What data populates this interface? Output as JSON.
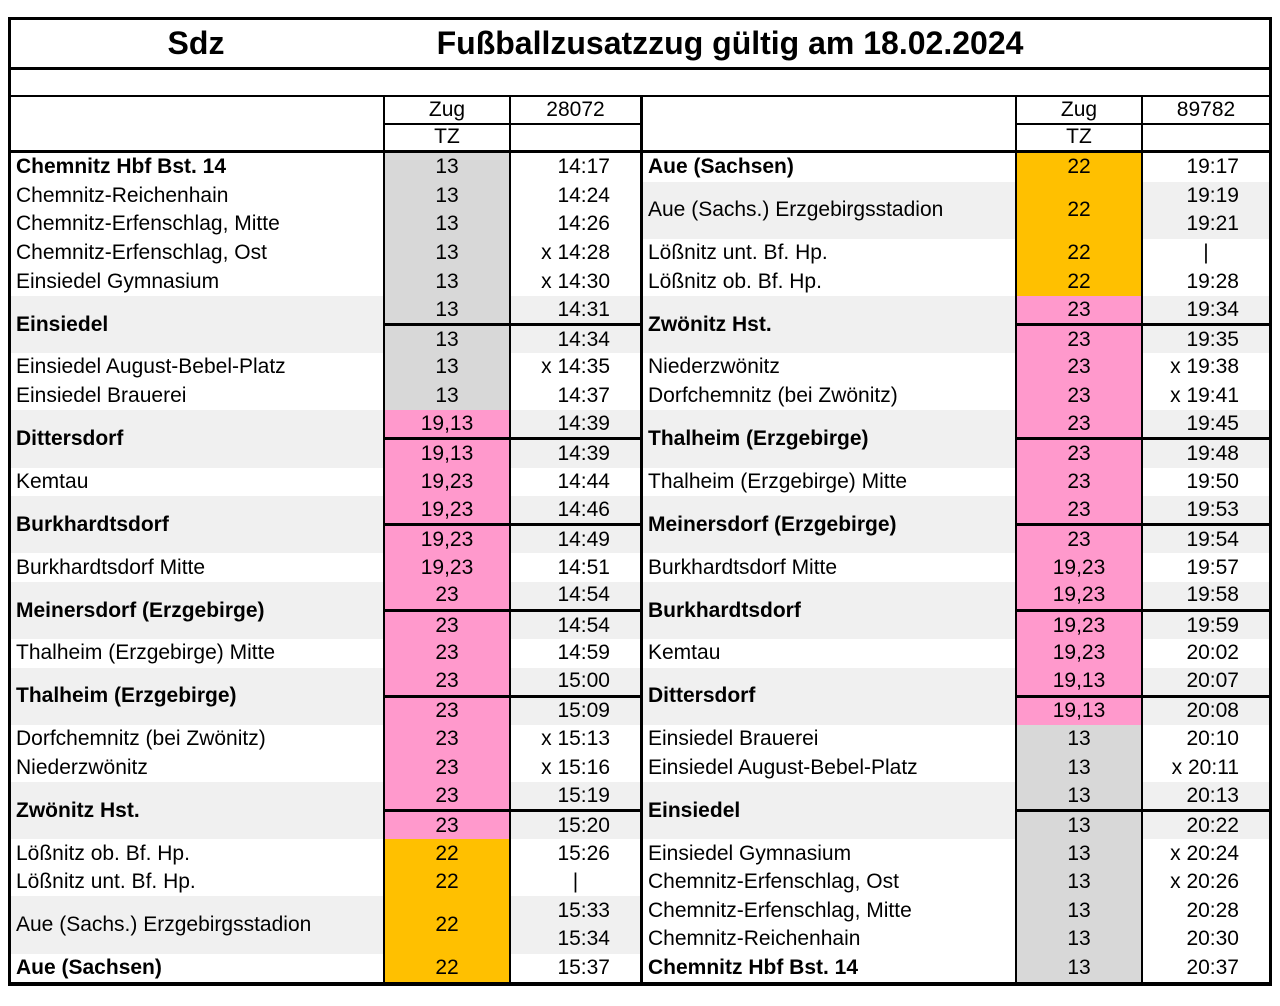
{
  "title": {
    "left": "Sdz",
    "main": "Fußballzusatzzug gültig am 18.02.2024"
  },
  "header_labels": {
    "zug": "Zug",
    "tz": "TZ"
  },
  "colors": {
    "gray": "#D8D8D8",
    "pink": "#FF99CC",
    "orange": "#FFC000",
    "band": "#F0F0F0"
  },
  "tables": [
    {
      "train_number": "28072",
      "groups": [
        {
          "station": "Chemnitz Hbf Bst. 14",
          "bold": true,
          "type": "single",
          "color": "gray",
          "rows": [
            {
              "tz": "13",
              "time": "14:17"
            }
          ]
        },
        {
          "station": "Chemnitz-Reichenhain",
          "bold": false,
          "type": "single",
          "color": "gray",
          "rows": [
            {
              "tz": "13",
              "time": "14:24"
            }
          ]
        },
        {
          "station": "Chemnitz-Erfenschlag, Mitte",
          "bold": false,
          "type": "single",
          "color": "gray",
          "rows": [
            {
              "tz": "13",
              "time": "14:26"
            }
          ]
        },
        {
          "station": "Chemnitz-Erfenschlag, Ost",
          "bold": false,
          "type": "single",
          "color": "gray",
          "rows": [
            {
              "tz": "13",
              "time": "x 14:28"
            }
          ]
        },
        {
          "station": "Einsiedel Gymnasium",
          "bold": false,
          "type": "single",
          "color": "gray",
          "rows": [
            {
              "tz": "13",
              "time": "x 14:30"
            }
          ]
        },
        {
          "station": "Einsiedel",
          "bold": true,
          "type": "double",
          "color": "gray",
          "rows": [
            {
              "tz": "13",
              "time": "14:31"
            },
            {
              "tz": "13",
              "time": "14:34"
            }
          ]
        },
        {
          "station": "Einsiedel August-Bebel-Platz",
          "bold": false,
          "type": "single",
          "color": "gray",
          "rows": [
            {
              "tz": "13",
              "time": "x 14:35"
            }
          ]
        },
        {
          "station": "Einsiedel Brauerei",
          "bold": false,
          "type": "single",
          "color": "gray",
          "rows": [
            {
              "tz": "13",
              "time": "14:37"
            }
          ]
        },
        {
          "station": "Dittersdorf",
          "bold": true,
          "type": "double",
          "color": "pink",
          "rows": [
            {
              "tz": "19,13",
              "time": "14:39"
            },
            {
              "tz": "19,13",
              "time": "14:39"
            }
          ]
        },
        {
          "station": "Kemtau",
          "bold": false,
          "type": "single",
          "color": "pink",
          "rows": [
            {
              "tz": "19,23",
              "time": "14:44"
            }
          ]
        },
        {
          "station": "Burkhardtsdorf",
          "bold": true,
          "type": "double",
          "color": "pink",
          "rows": [
            {
              "tz": "19,23",
              "time": "14:46"
            },
            {
              "tz": "19,23",
              "time": "14:49"
            }
          ]
        },
        {
          "station": "Burkhardtsdorf Mitte",
          "bold": false,
          "type": "single",
          "color": "pink",
          "rows": [
            {
              "tz": "19,23",
              "time": "14:51"
            }
          ]
        },
        {
          "station": "Meinersdorf (Erzgebirge)",
          "bold": true,
          "type": "double",
          "color": "pink",
          "rows": [
            {
              "tz": "23",
              "time": "14:54"
            },
            {
              "tz": "23",
              "time": "14:54"
            }
          ]
        },
        {
          "station": "Thalheim (Erzgebirge) Mitte",
          "bold": false,
          "type": "single",
          "color": "pink",
          "rows": [
            {
              "tz": "23",
              "time": "14:59"
            }
          ]
        },
        {
          "station": "Thalheim (Erzgebirge)",
          "bold": true,
          "type": "double",
          "color": "pink",
          "rows": [
            {
              "tz": "23",
              "time": "15:00"
            },
            {
              "tz": "23",
              "time": "15:09"
            }
          ]
        },
        {
          "station": "Dorfchemnitz (bei Zwönitz)",
          "bold": false,
          "type": "single",
          "color": "pink",
          "rows": [
            {
              "tz": "23",
              "time": "x 15:13"
            }
          ]
        },
        {
          "station": "Niederzwönitz",
          "bold": false,
          "type": "single",
          "color": "pink",
          "rows": [
            {
              "tz": "23",
              "time": "x 15:16"
            }
          ]
        },
        {
          "station": "Zwönitz Hst.",
          "bold": true,
          "type": "double",
          "color": "pink",
          "rows": [
            {
              "tz": "23",
              "time": "15:19"
            },
            {
              "tz": "23",
              "time": "15:20"
            }
          ]
        },
        {
          "station": "Lößnitz ob. Bf. Hp.",
          "bold": false,
          "type": "single",
          "color": "orange",
          "rows": [
            {
              "tz": "22",
              "time": "15:26"
            }
          ]
        },
        {
          "station": "Lößnitz unt. Bf. Hp.",
          "bold": false,
          "type": "single",
          "color": "orange",
          "rows": [
            {
              "tz": "22",
              "time": "|"
            }
          ]
        },
        {
          "station": "Aue (Sachs.) Erzgebirgsstadion",
          "bold": false,
          "type": "span",
          "color": "orange",
          "tz": "22",
          "times": [
            "15:33",
            "15:34"
          ]
        },
        {
          "station": "Aue (Sachsen)",
          "bold": true,
          "type": "single",
          "color": "orange",
          "rows": [
            {
              "tz": "22",
              "time": "15:37"
            }
          ]
        }
      ]
    },
    {
      "train_number": "89782",
      "groups": [
        {
          "station": "Aue (Sachsen)",
          "bold": true,
          "type": "single",
          "color": "orange",
          "rows": [
            {
              "tz": "22",
              "time": "19:17"
            }
          ]
        },
        {
          "station": "Aue (Sachs.) Erzgebirgsstadion",
          "bold": false,
          "type": "span",
          "color": "orange",
          "tz": "22",
          "times": [
            "19:19",
            "19:21"
          ]
        },
        {
          "station": "Lößnitz unt. Bf. Hp.",
          "bold": false,
          "type": "single",
          "color": "orange",
          "rows": [
            {
              "tz": "22",
              "time": "|"
            }
          ]
        },
        {
          "station": "Lößnitz ob. Bf. Hp.",
          "bold": false,
          "type": "single",
          "color": "orange",
          "rows": [
            {
              "tz": "22",
              "time": "19:28"
            }
          ]
        },
        {
          "station": "Zwönitz Hst.",
          "bold": true,
          "type": "double",
          "color": "pink",
          "rows": [
            {
              "tz": "23",
              "time": "19:34"
            },
            {
              "tz": "23",
              "time": "19:35"
            }
          ]
        },
        {
          "station": "Niederzwönitz",
          "bold": false,
          "type": "single",
          "color": "pink",
          "rows": [
            {
              "tz": "23",
              "time": "x 19:38"
            }
          ]
        },
        {
          "station": "Dorfchemnitz (bei Zwönitz)",
          "bold": false,
          "type": "single",
          "color": "pink",
          "rows": [
            {
              "tz": "23",
              "time": "x 19:41"
            }
          ]
        },
        {
          "station": "Thalheim (Erzgebirge)",
          "bold": true,
          "type": "double",
          "color": "pink",
          "rows": [
            {
              "tz": "23",
              "time": "19:45"
            },
            {
              "tz": "23",
              "time": "19:48"
            }
          ]
        },
        {
          "station": "Thalheim (Erzgebirge) Mitte",
          "bold": false,
          "type": "single",
          "color": "pink",
          "rows": [
            {
              "tz": "23",
              "time": "19:50"
            }
          ]
        },
        {
          "station": "Meinersdorf (Erzgebirge)",
          "bold": true,
          "type": "double",
          "color": "pink",
          "rows": [
            {
              "tz": "23",
              "time": "19:53"
            },
            {
              "tz": "23",
              "time": "19:54"
            }
          ]
        },
        {
          "station": "Burkhardtsdorf Mitte",
          "bold": false,
          "type": "single",
          "color": "pink",
          "rows": [
            {
              "tz": "19,23",
              "time": "19:57"
            }
          ]
        },
        {
          "station": "Burkhardtsdorf",
          "bold": true,
          "type": "double",
          "color": "pink",
          "rows": [
            {
              "tz": "19,23",
              "time": "19:58"
            },
            {
              "tz": "19,23",
              "time": "19:59"
            }
          ]
        },
        {
          "station": "Kemtau",
          "bold": false,
          "type": "single",
          "color": "pink",
          "rows": [
            {
              "tz": "19,23",
              "time": "20:02"
            }
          ]
        },
        {
          "station": "Dittersdorf",
          "bold": true,
          "type": "double",
          "color": "pink",
          "rows": [
            {
              "tz": "19,13",
              "time": "20:07"
            },
            {
              "tz": "19,13",
              "time": "20:08"
            }
          ]
        },
        {
          "station": "Einsiedel Brauerei",
          "bold": false,
          "type": "single",
          "color": "gray",
          "rows": [
            {
              "tz": "13",
              "time": "20:10"
            }
          ]
        },
        {
          "station": "Einsiedel August-Bebel-Platz",
          "bold": false,
          "type": "single",
          "color": "gray",
          "rows": [
            {
              "tz": "13",
              "time": "x 20:11"
            }
          ]
        },
        {
          "station": "Einsiedel",
          "bold": true,
          "type": "double",
          "color": "gray",
          "rows": [
            {
              "tz": "13",
              "time": "20:13"
            },
            {
              "tz": "13",
              "time": "20:22"
            }
          ]
        },
        {
          "station": "Einsiedel Gymnasium",
          "bold": false,
          "type": "single",
          "color": "gray",
          "rows": [
            {
              "tz": "13",
              "time": "x 20:24"
            }
          ]
        },
        {
          "station": "Chemnitz-Erfenschlag, Ost",
          "bold": false,
          "type": "single",
          "color": "gray",
          "rows": [
            {
              "tz": "13",
              "time": "x 20:26"
            }
          ]
        },
        {
          "station": "Chemnitz-Erfenschlag, Mitte",
          "bold": false,
          "type": "single",
          "color": "gray",
          "rows": [
            {
              "tz": "13",
              "time": "20:28"
            }
          ]
        },
        {
          "station": "Chemnitz-Reichenhain",
          "bold": false,
          "type": "single",
          "color": "gray",
          "rows": [
            {
              "tz": "13",
              "time": "20:30"
            }
          ]
        },
        {
          "station": "Chemnitz Hbf Bst. 14",
          "bold": true,
          "type": "single",
          "color": "gray",
          "rows": [
            {
              "tz": "13",
              "time": "20:37"
            }
          ]
        }
      ]
    }
  ]
}
